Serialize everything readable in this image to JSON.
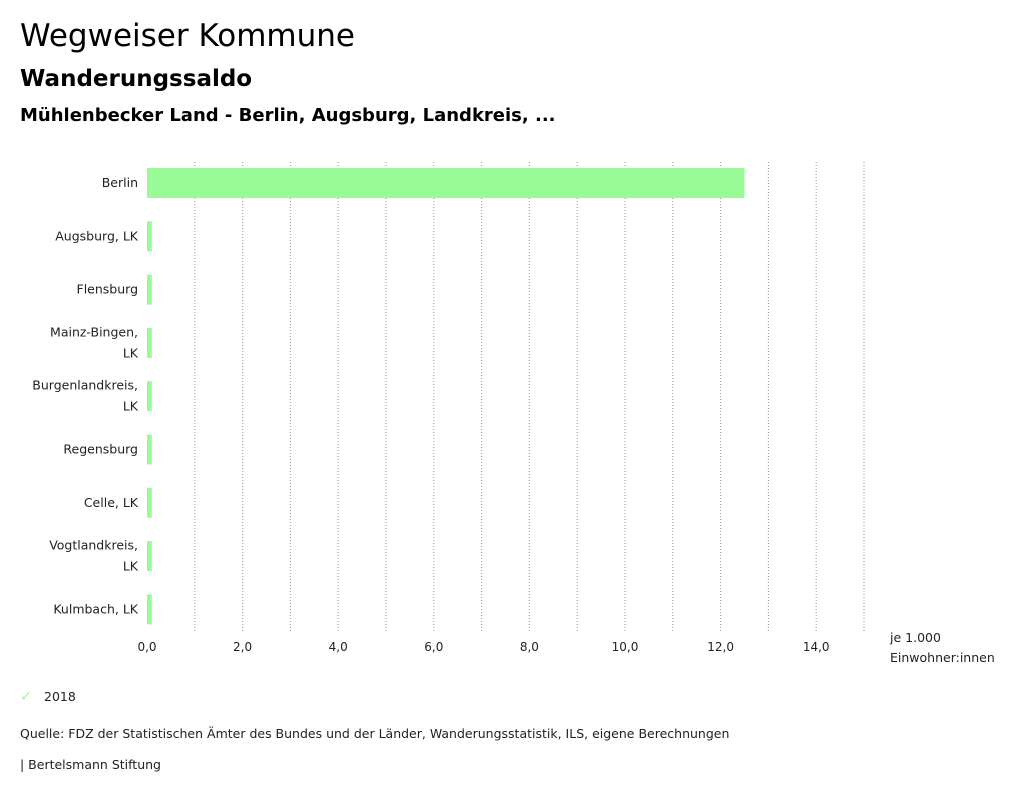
{
  "header": {
    "title": "Wegweiser Kommune",
    "subtitle": "Wanderungssaldo",
    "region": "Mühlenbecker Land - Berlin, Augsburg, Landkreis, ..."
  },
  "colors": {
    "bar": "#98fb98",
    "grid": "#999999"
  },
  "chart_data": {
    "type": "bar",
    "orientation": "horizontal",
    "categories": [
      "Berlin",
      "Augsburg, LK",
      "Flensburg",
      "Mainz-Bingen, LK",
      "Burgenlandkreis, LK",
      "Regensburg",
      "Celle, LK",
      "Vogtlandkreis, LK",
      "Kulmbach, LK"
    ],
    "category_lines": [
      [
        "Berlin"
      ],
      [
        "Augsburg, LK"
      ],
      [
        "Flensburg"
      ],
      [
        "Mainz-Bingen,",
        "LK"
      ],
      [
        "Burgenlandkreis,",
        "LK"
      ],
      [
        "Regensburg"
      ],
      [
        "Celle, LK"
      ],
      [
        "Vogtlandkreis,",
        "LK"
      ],
      [
        "Kulmbach, LK"
      ]
    ],
    "series": [
      {
        "name": "2018",
        "values": [
          12.5,
          0.1,
          0.1,
          0.1,
          0.1,
          0.1,
          0.1,
          0.1,
          0.1
        ]
      }
    ],
    "xlim": [
      0,
      15
    ],
    "ticks": [
      0,
      2,
      4,
      6,
      8,
      10,
      12,
      14
    ],
    "tick_labels": [
      "0,0",
      "2,0",
      "4,0",
      "6,0",
      "8,0",
      "10,0",
      "12,0",
      "14,0"
    ],
    "grid_step": 1,
    "xlabel_lines": [
      "je 1.000",
      "Einwohner:innen"
    ],
    "grid": true,
    "legend_position": "bottom-left"
  },
  "legend": {
    "label": "2018"
  },
  "footer": {
    "source": "Quelle: FDZ der Statistischen Ämter des Bundes und der Länder, Wanderungsstatistik, ILS, eigene Berechnungen",
    "brand": "| Bertelsmann Stiftung"
  }
}
